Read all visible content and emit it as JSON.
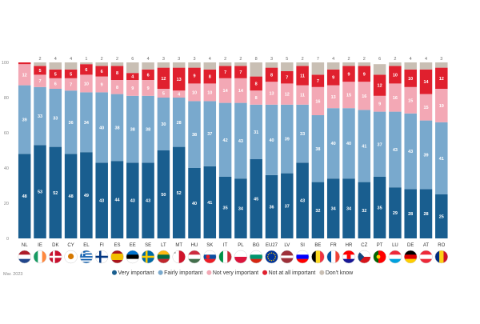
{
  "date_note": "Mar. 2023",
  "chart_data": {
    "type": "bar",
    "stacked": true,
    "percent_stacked": true,
    "ylim": [
      0,
      100
    ],
    "yticks": [
      "0",
      "20",
      "40",
      "60",
      "80",
      "100"
    ],
    "grid": false,
    "legend_position": "bottom",
    "categories": [
      "NL",
      "IE",
      "DK",
      "CY",
      "EL",
      "FI",
      "ES",
      "EE",
      "SE",
      "LT",
      "MT",
      "HU",
      "SK",
      "IT",
      "PL",
      "BG",
      "EU27",
      "LV",
      "SI",
      "BE",
      "FR",
      "HR",
      "CZ",
      "PT",
      "LU",
      "DE",
      "AT",
      "RO"
    ],
    "series": [
      {
        "name": "Very important",
        "color": "#195e8f",
        "values": [
          48,
          53,
          52,
          48,
          49,
          43,
          44,
          43,
          43,
          50,
          52,
          40,
          41,
          35,
          34,
          45,
          36,
          37,
          43,
          32,
          34,
          34,
          32,
          35,
          29,
          28,
          28,
          25
        ]
      },
      {
        "name": "Fairly important",
        "color": "#79a9cd",
        "values": [
          39,
          33,
          33,
          36,
          34,
          40,
          38,
          38,
          38,
          30,
          28,
          38,
          37,
          42,
          43,
          31,
          40,
          39,
          33,
          38,
          40,
          40,
          41,
          37,
          43,
          43,
          39,
          41
        ]
      },
      {
        "name": "Not very important",
        "color": "#f3a8b5",
        "values": [
          12,
          7,
          6,
          7,
          10,
          9,
          8,
          9,
          9,
          5,
          4,
          10,
          10,
          14,
          14,
          8,
          13,
          12,
          11,
          16,
          13,
          15,
          16,
          9,
          16,
          15,
          15,
          19
        ]
      },
      {
        "name": "Not at all important",
        "color": "#e0202e",
        "values": [
          1,
          5,
          5,
          5,
          6,
          6,
          8,
          4,
          6,
          12,
          13,
          9,
          8,
          7,
          7,
          8,
          8,
          7,
          11,
          7,
          9,
          9,
          9,
          12,
          10,
          10,
          14,
          12
        ]
      },
      {
        "name": "Don't know",
        "color": "#c9bfb4",
        "values": [
          0,
          2,
          4,
          4,
          1,
          2,
          2,
          6,
          4,
          3,
          3,
          3,
          4,
          2,
          2,
          8,
          3,
          5,
          2,
          7,
          4,
          2,
          2,
          6,
          2,
          4,
          4,
          3
        ]
      }
    ],
    "labels_on_bars": {
      "Very important": [
        "48",
        "53",
        "52",
        "48",
        "49",
        "43",
        "44",
        "43",
        "43",
        "50",
        "52",
        "40",
        "41",
        "35",
        "34",
        "45",
        "36",
        "37",
        "43",
        "32",
        "34",
        "34",
        "32",
        "35",
        "29",
        "28",
        "28",
        "25"
      ],
      "Fairly important": [
        "39",
        "33",
        "33",
        "36",
        "34",
        "40",
        "38",
        "38",
        "38",
        "30",
        "28",
        "38",
        "37",
        "42",
        "43",
        "31",
        "40",
        "39",
        "33",
        "38",
        "40",
        "40",
        "41",
        "37",
        "43",
        "43",
        "39",
        "41"
      ],
      "Not very important": [
        "12",
        "7",
        "6",
        "7",
        "10",
        "9",
        "8",
        "9",
        "9",
        "5",
        "4",
        "10",
        "10",
        "14",
        "14",
        "8",
        "13",
        "12",
        "11",
        "16",
        "13",
        "15",
        "16",
        "9",
        "16",
        "15",
        "15",
        "19"
      ],
      "Not at all important": [
        "",
        "5",
        "5",
        "5",
        "6",
        "6",
        "8",
        "4",
        "6",
        "12",
        "13",
        "9",
        "8",
        "7",
        "7",
        "8",
        "8",
        "7",
        "11",
        "7",
        "9",
        "9",
        "9",
        "12",
        "10",
        "10",
        "14",
        "12"
      ],
      "Don't know": [
        "",
        "2",
        "4",
        "4",
        "1",
        "2",
        "2",
        "6",
        "4",
        "3",
        "3",
        "3",
        "4",
        "2",
        "2",
        "8",
        "3",
        "5",
        "2",
        "7",
        "4",
        "2",
        "2",
        "6",
        "2",
        "4",
        "4",
        "3"
      ]
    }
  },
  "flags": [
    "nl-flag-icon",
    "ie-flag-icon",
    "dk-flag-icon",
    "cy-flag-icon",
    "el-flag-icon",
    "fi-flag-icon",
    "es-flag-icon",
    "ee-flag-icon",
    "se-flag-icon",
    "lt-flag-icon",
    "mt-flag-icon",
    "hu-flag-icon",
    "sk-flag-icon",
    "it-flag-icon",
    "pl-flag-icon",
    "bg-flag-icon",
    "eu-flag-icon",
    "lv-flag-icon",
    "si-flag-icon",
    "be-flag-icon",
    "fr-flag-icon",
    "hr-flag-icon",
    "cz-flag-icon",
    "pt-flag-icon",
    "lu-flag-icon",
    "de-flag-icon",
    "at-flag-icon",
    "ro-flag-icon"
  ]
}
